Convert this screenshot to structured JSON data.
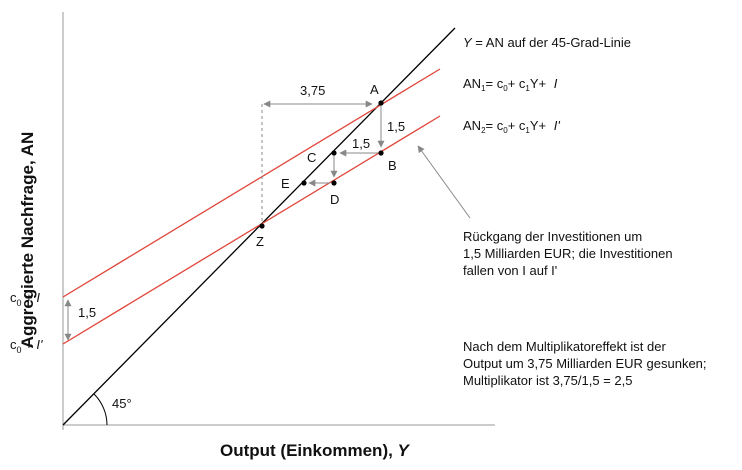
{
  "chart_data": {
    "type": "line",
    "xlabel_main": "Output (Einkommen), ",
    "xlabel_var": "Y",
    "ylabel": "Aggregierte Nachfrage, AN",
    "angle_label": "45°",
    "series": [
      {
        "name": "Y = AN auf der 45-Grad-Linie",
        "color": "#000000"
      },
      {
        "name": "AN1 = c0 + c1Y + I",
        "color": "#e0453a"
      },
      {
        "name": "AN2 = c0 + c1Y + I'",
        "color": "#e0453a"
      }
    ],
    "legend": {
      "line45": {
        "pre": "Y",
        "post": " = AN auf der 45-Grad-Linie"
      },
      "an1": {
        "name": "AN",
        "sub": "1",
        "eq": "= ",
        "c": "c",
        "c0sub": "0",
        "plus1": "+ ",
        "c1sub": "1",
        "ytxt": "Y+ ",
        "inv": "I"
      },
      "an2": {
        "name": "AN",
        "sub": "2",
        "eq": "= ",
        "c": "c",
        "c0sub": "0",
        "plus1": "+ ",
        "c1sub": "1",
        "ytxt": "Y+ ",
        "inv": "I'"
      }
    },
    "intercepts": {
      "upper": {
        "c": "c",
        "sub": "0",
        "rest": " + ",
        "inv": "I"
      },
      "lower": {
        "c": "c",
        "sub": "0",
        "rest": " + ",
        "inv": "I'"
      },
      "gap_label": "1,5"
    },
    "points": [
      "A",
      "B",
      "C",
      "D",
      "E",
      "Z"
    ],
    "annotations": {
      "delta_y_label": "3,75",
      "drop_label_vertical": "1,5",
      "drop_label_horizontal": "1,5",
      "note1": [
        "Rückgang der Investitionen um",
        "1,5 Milliarden EUR; die Investitionen",
        "fallen von I auf I'"
      ],
      "note2": [
        "Nach dem Multiplikatoreffekt ist der",
        "Output um 3,75 Milliarden EUR gesunken;",
        "Multiplikator ist 3,75/1,5 = 2,5"
      ]
    }
  }
}
